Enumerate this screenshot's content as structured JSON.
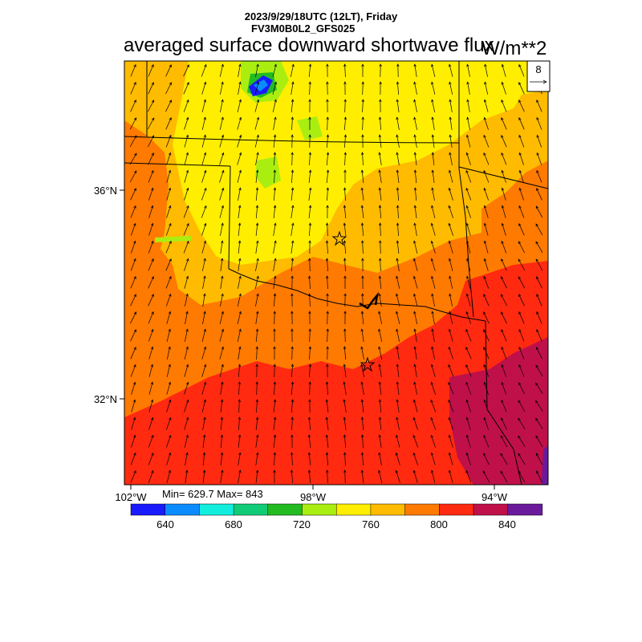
{
  "header": {
    "datetime": "2023/9/29/18UTC (12LT), Friday",
    "model": "FV3M0B0L2_GFS025"
  },
  "title": "averaged surface downward shortwave flux",
  "units": "W/m**2",
  "vector_reference": {
    "label": "8"
  },
  "lat_labels": [
    "36°N",
    "32°N"
  ],
  "lon_labels": [
    "102°W",
    "98°W",
    "94°W"
  ],
  "stats": "Min= 629.7 Max= 843",
  "colorbar": {
    "colors": [
      "#1a1aff",
      "#0a8cff",
      "#11eedd",
      "#11cc77",
      "#22bb22",
      "#aaee11",
      "#ffee00",
      "#ffbb00",
      "#ff7a00",
      "#ff2a10",
      "#c0104a",
      "#6a1a9a"
    ],
    "tick_labels": [
      "640",
      "680",
      "720",
      "760",
      "800",
      "840"
    ]
  },
  "fill_colors": {
    "yellow": "#ffee00",
    "gold": "#ffbb00",
    "orange": "#ff7a00",
    "red": "#ff2a10",
    "crimson": "#c0104a",
    "purple": "#6a1a9a",
    "green": "#22bb22",
    "lime": "#aaee11",
    "blue": "#1a1aff",
    "sky": "#0a8cff"
  }
}
